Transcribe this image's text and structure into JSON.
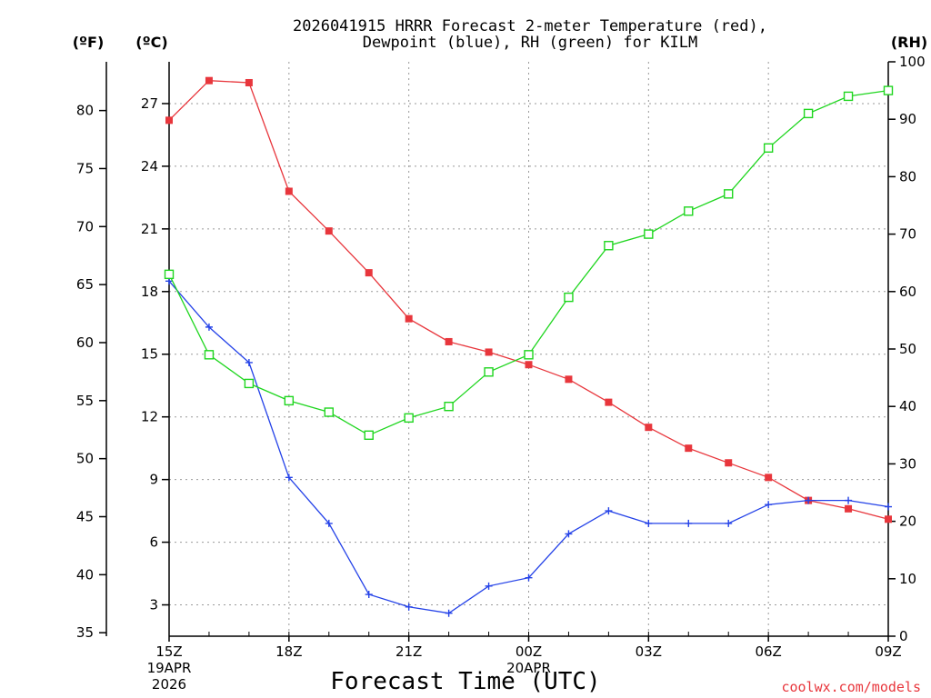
{
  "chart_data": {
    "type": "line",
    "title_line1": "2026041915 HRRR Forecast 2-meter Temperature (red),",
    "title_line2": "Dewpoint (blue), RH (green) for KILM",
    "xlabel": "Forecast Time (UTC)",
    "credit": "coolwx.com/models",
    "units": {
      "fahrenheit": "(ºF)",
      "celsius": "(ºC)",
      "rh": "(RH)"
    },
    "x_hours": [
      0,
      1,
      2,
      3,
      4,
      5,
      6,
      7,
      8,
      9,
      10,
      11,
      12,
      13,
      14,
      15,
      16,
      17,
      18
    ],
    "x_ticks": [
      {
        "hour": 0,
        "label": "15Z",
        "sub1": "19APR",
        "sub2": "2026"
      },
      {
        "hour": 3,
        "label": "18Z",
        "sub1": "",
        "sub2": ""
      },
      {
        "hour": 6,
        "label": "21Z",
        "sub1": "",
        "sub2": ""
      },
      {
        "hour": 9,
        "label": "00Z",
        "sub1": "20APR",
        "sub2": ""
      },
      {
        "hour": 12,
        "label": "03Z",
        "sub1": "",
        "sub2": ""
      },
      {
        "hour": 15,
        "label": "06Z",
        "sub1": "",
        "sub2": ""
      },
      {
        "hour": 18,
        "label": "09Z",
        "sub1": "",
        "sub2": ""
      }
    ],
    "celsius_axis": {
      "min": 1.5,
      "max": 29,
      "ticks": [
        3,
        6,
        9,
        12,
        15,
        18,
        21,
        24,
        27
      ]
    },
    "fahrenheit_axis": {
      "min": 34.7,
      "max": 84.2,
      "ticks": [
        35,
        40,
        45,
        50,
        55,
        60,
        65,
        70,
        75,
        80
      ]
    },
    "rh_axis": {
      "min": 0,
      "max": 100,
      "ticks": [
        0,
        10,
        20,
        30,
        40,
        50,
        60,
        70,
        80,
        90,
        100
      ]
    },
    "series": [
      {
        "name": "Temperature",
        "units": "C",
        "color": "#e8363c",
        "marker": "filled-square",
        "values": [
          26.2,
          28.1,
          28.0,
          22.8,
          20.9,
          18.9,
          16.7,
          15.6,
          15.1,
          14.5,
          13.8,
          12.7,
          11.5,
          10.5,
          9.8,
          9.1,
          8.0,
          7.6,
          7.1
        ]
      },
      {
        "name": "Dewpoint",
        "units": "C",
        "color": "#2442e8",
        "marker": "plus",
        "values": [
          18.5,
          16.3,
          14.6,
          9.1,
          6.9,
          3.5,
          2.9,
          2.6,
          3.9,
          4.3,
          6.4,
          7.5,
          6.9,
          6.9,
          6.9,
          7.8,
          8.0,
          8.0,
          7.7
        ]
      },
      {
        "name": "RH",
        "units": "%",
        "color": "#1fd61f",
        "marker": "open-square",
        "values": [
          63,
          49,
          44,
          41,
          39,
          35,
          38,
          40,
          46,
          49,
          59,
          68,
          70,
          74,
          77,
          85,
          91,
          94,
          95
        ]
      }
    ]
  }
}
